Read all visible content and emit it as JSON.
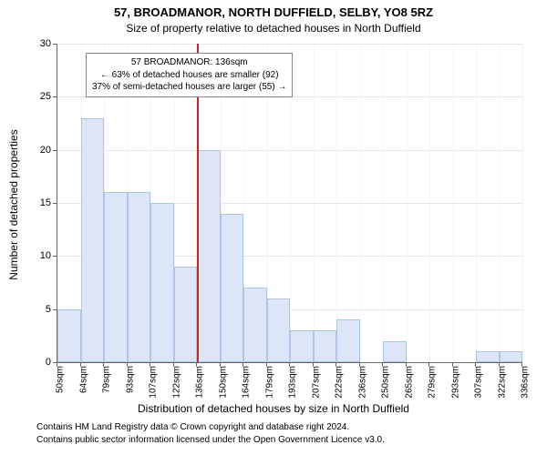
{
  "title_main": "57, BROADMANOR, NORTH DUFFIELD, SELBY, YO8 5RZ",
  "title_sub": "Size of property relative to detached houses in North Duffield",
  "ylabel": "Number of detached properties",
  "xlabel": "Distribution of detached houses by size in North Duffield",
  "footer1": "Contains HM Land Registry data © Crown copyright and database right 2024.",
  "footer2": "Contains public sector information licensed under the Open Government Licence v3.0.",
  "annotation": {
    "line1": "57 BROADMANOR: 136sqm",
    "line2": "← 63% of detached houses are smaller (92)",
    "line3": "37% of semi-detached houses are larger (55) →"
  },
  "chart": {
    "type": "histogram",
    "ylim": [
      0,
      30
    ],
    "ytick_step": 5,
    "yticks": [
      0,
      5,
      10,
      15,
      20,
      25,
      30
    ],
    "xtick_labels": [
      "50sqm",
      "64sqm",
      "79sqm",
      "93sqm",
      "107sqm",
      "122sqm",
      "136sqm",
      "150sqm",
      "164sqm",
      "179sqm",
      "193sqm",
      "207sqm",
      "222sqm",
      "236sqm",
      "250sqm",
      "265sqm",
      "279sqm",
      "293sqm",
      "307sqm",
      "322sqm",
      "336sqm"
    ],
    "values": [
      5,
      23,
      16,
      16,
      15,
      9,
      20,
      14,
      7,
      6,
      3,
      3,
      4,
      0,
      2,
      0,
      0,
      0,
      1,
      1
    ],
    "marker_at_index": 6,
    "bar_fill": "#dde6f6",
    "bar_stroke": "#b0c4e8",
    "marker_color": "#cc2222",
    "background_color": "#ffffff",
    "grid_color": "#e6e6e6",
    "axis_color": "#666666",
    "title_fontsize": 13,
    "subtitle_fontsize": 12,
    "label_fontsize": 12,
    "tick_fontsize": 11
  }
}
